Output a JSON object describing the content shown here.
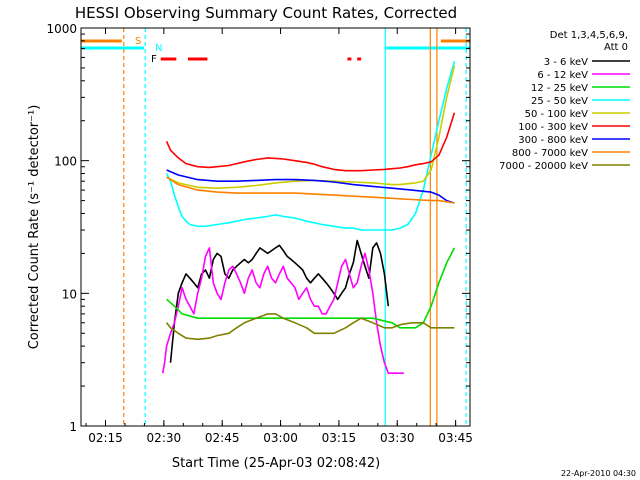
{
  "chart_data": {
    "type": "line",
    "title": "HESSI Observing Summary Count Rates, Corrected",
    "xlabel": "Start Time (25-Apr-03 02:08:42)",
    "ylabel": "Corrected Count Rate (s⁻¹ detector⁻¹)",
    "x_unit": "minutes after 02:08:42 UT",
    "xlim_min": [
      0,
      100
    ],
    "y_scale": "log",
    "ylim": [
      1,
      1000
    ],
    "x_ticks": [
      {
        "t": 6.3,
        "label": "02:15"
      },
      {
        "t": 21.3,
        "label": "02:30"
      },
      {
        "t": 36.3,
        "label": "02:45"
      },
      {
        "t": 51.3,
        "label": "03:00"
      },
      {
        "t": 66.3,
        "label": "03:15"
      },
      {
        "t": 81.3,
        "label": "03:30"
      },
      {
        "t": 96.3,
        "label": "03:45"
      }
    ],
    "y_ticks": [
      {
        "v": 1,
        "label": "1"
      },
      {
        "v": 10,
        "label": "10"
      },
      {
        "v": 100,
        "label": "100"
      },
      {
        "v": 1000,
        "label": "1000"
      }
    ],
    "legend": {
      "placement": "right",
      "header": [
        "Det 1,3,4,5,6,9,",
        "Att 0"
      ],
      "entries": [
        {
          "label": "3 - 6 keV",
          "color": "#000000"
        },
        {
          "label": "6 - 12 keV",
          "color": "#ff00ff"
        },
        {
          "label": "12 - 25 keV",
          "color": "#00dd00"
        },
        {
          "label": "25 - 50 keV",
          "color": "#00ffff"
        },
        {
          "label": "50 - 100 keV",
          "color": "#cccc00"
        },
        {
          "label": "100 - 300 keV",
          "color": "#ff0000"
        },
        {
          "label": "300 - 800 keV",
          "color": "#0000ff"
        },
        {
          "label": "800 - 7000 keV",
          "color": "#ff8000"
        },
        {
          "label": "7000 - 20000 keV",
          "color": "#808000"
        }
      ]
    },
    "series": [
      {
        "name": "3 - 6 keV",
        "color": "#000000",
        "x": [
          23,
          24,
          25,
          26,
          27,
          28,
          29,
          30,
          31,
          32,
          33,
          34,
          35,
          36,
          37,
          38,
          39,
          40,
          41,
          42,
          43,
          44,
          45,
          46,
          47,
          48,
          49,
          50,
          51,
          52,
          53,
          54,
          55,
          56,
          57,
          58,
          59,
          60,
          61,
          62,
          63,
          64,
          65,
          66,
          67,
          68,
          69,
          70,
          71,
          72,
          73,
          74,
          75,
          76,
          77,
          78,
          79
        ],
        "y": [
          3,
          6,
          10,
          12,
          14,
          13,
          12,
          11,
          14,
          15,
          13,
          18,
          20,
          19,
          14,
          13,
          15,
          16,
          17,
          18,
          17,
          18,
          20,
          22,
          21,
          20,
          21,
          22,
          23,
          21,
          19,
          18,
          17,
          16,
          15,
          13,
          12,
          13,
          14,
          13,
          12,
          11,
          10,
          9,
          10,
          11,
          14,
          17,
          25,
          20,
          16,
          13,
          22,
          24,
          20,
          14,
          8
        ]
      },
      {
        "name": "6 - 12 keV",
        "color": "#ff00ff",
        "x": [
          21,
          21.5,
          22,
          23,
          24,
          25,
          26,
          27,
          28,
          29,
          30,
          31,
          32,
          33,
          34,
          35,
          36,
          37,
          38,
          39,
          40,
          41,
          42,
          43,
          44,
          45,
          46,
          47,
          48,
          49,
          50,
          51,
          52,
          53,
          54,
          55,
          56,
          57,
          58,
          59,
          60,
          61,
          62,
          63,
          64,
          65,
          66,
          67,
          68,
          69,
          70,
          71,
          72,
          73,
          74,
          75,
          76,
          77,
          78,
          79,
          80,
          81,
          82,
          83
        ],
        "y": [
          2.5,
          3,
          4,
          5,
          6,
          8,
          11,
          9,
          8,
          7,
          10,
          13,
          19,
          22,
          12,
          10,
          9,
          12,
          15,
          16,
          14,
          12,
          10,
          13,
          15,
          12,
          11,
          14,
          16,
          13,
          12,
          14,
          16,
          13,
          12,
          11,
          9,
          10,
          11,
          9,
          8,
          8,
          7,
          7,
          8,
          9,
          12,
          16,
          18,
          14,
          11,
          12,
          16,
          20,
          15,
          10,
          6,
          4,
          3,
          2.5,
          2.5,
          2.5,
          2.5,
          2.5
        ]
      },
      {
        "name": "12 - 25 keV",
        "color": "#00dd00",
        "x": [
          22,
          23,
          24,
          25,
          26,
          30,
          35,
          40,
          45,
          50,
          55,
          60,
          65,
          70,
          75,
          80,
          82,
          84,
          86,
          88,
          90,
          92,
          94,
          96
        ],
        "y": [
          9,
          8.5,
          8,
          7.5,
          7,
          6.5,
          6.5,
          6.5,
          6.5,
          6.5,
          6.5,
          6.5,
          6.5,
          6.5,
          6.5,
          6,
          5.5,
          5.5,
          5.5,
          6,
          8,
          12,
          17,
          22
        ]
      },
      {
        "name": "25 - 50 keV",
        "color": "#00ffff",
        "x": [
          22,
          23,
          24,
          25,
          26,
          27,
          28,
          30,
          32,
          35,
          38,
          40,
          42,
          45,
          48,
          50,
          52,
          55,
          58,
          60,
          62,
          65,
          68,
          70,
          72,
          75,
          78,
          80,
          82,
          84,
          86,
          88,
          90,
          92,
          94,
          96
        ],
        "y": [
          80,
          70,
          55,
          45,
          38,
          35,
          33,
          32,
          32,
          33,
          34,
          35,
          36,
          37,
          38,
          39,
          38,
          37,
          35,
          34,
          33,
          32,
          31,
          31,
          30,
          30,
          30,
          30,
          31,
          33,
          40,
          60,
          110,
          200,
          350,
          560
        ]
      },
      {
        "name": "50 - 100 keV",
        "color": "#cccc00",
        "x": [
          22,
          25,
          30,
          35,
          40,
          45,
          50,
          55,
          60,
          65,
          70,
          75,
          80,
          82,
          84,
          86,
          88,
          90,
          92,
          94,
          96
        ],
        "y": [
          75,
          68,
          63,
          62,
          63,
          65,
          68,
          70,
          71,
          70,
          69,
          68,
          66,
          66,
          67,
          68,
          70,
          85,
          150,
          300,
          520
        ]
      },
      {
        "name": "100 - 300 keV",
        "color": "#ff0000",
        "x": [
          22,
          23,
          25,
          27,
          30,
          33,
          35,
          38,
          40,
          42,
          45,
          48,
          50,
          52,
          55,
          58,
          60,
          62,
          65,
          68,
          70,
          72,
          75,
          78,
          80,
          82,
          84,
          86,
          88,
          90,
          92,
          94,
          96
        ],
        "y": [
          140,
          120,
          105,
          95,
          90,
          89,
          90,
          92,
          95,
          98,
          102,
          105,
          104,
          103,
          100,
          97,
          94,
          90,
          86,
          84,
          84,
          84,
          85,
          86,
          87,
          88,
          90,
          93,
          95,
          98,
          110,
          150,
          230
        ]
      },
      {
        "name": "300 - 800 keV",
        "color": "#0000ff",
        "x": [
          22,
          25,
          30,
          35,
          40,
          45,
          50,
          55,
          60,
          65,
          70,
          75,
          80,
          85,
          90,
          92,
          94,
          96
        ],
        "y": [
          85,
          78,
          72,
          70,
          70,
          71,
          72,
          72,
          71,
          69,
          66,
          64,
          62,
          60,
          58,
          55,
          50,
          48
        ]
      },
      {
        "name": "800 - 7000 keV",
        "color": "#ff8000",
        "x": [
          22,
          25,
          30,
          35,
          40,
          45,
          50,
          55,
          60,
          65,
          70,
          75,
          80,
          85,
          90,
          92,
          94,
          96
        ],
        "y": [
          75,
          66,
          60,
          58,
          57,
          57,
          57,
          57,
          56,
          55,
          54,
          53,
          52,
          51,
          50,
          50,
          49,
          48
        ]
      },
      {
        "name": "7000 - 20000 keV",
        "color": "#808000",
        "x": [
          22,
          23,
          25,
          27,
          30,
          33,
          35,
          38,
          40,
          42,
          45,
          48,
          50,
          52,
          55,
          58,
          60,
          62,
          65,
          68,
          70,
          72,
          75,
          78,
          80,
          82,
          85,
          88,
          90,
          92,
          94,
          96
        ],
        "y": [
          6,
          5.5,
          5,
          4.6,
          4.5,
          4.6,
          4.8,
          5,
          5.5,
          6,
          6.5,
          7,
          7,
          6.5,
          6,
          5.5,
          5,
          5,
          5,
          5.5,
          6,
          6.5,
          6,
          5.5,
          5.5,
          5.8,
          6,
          6,
          5.5,
          5.5,
          5.5,
          5.5
        ]
      }
    ],
    "flags": {
      "s_label": "S",
      "n_label": "N",
      "f_label": "F",
      "saa_color": "#ff8000",
      "night_color": "#00ffff",
      "flare_color": "#ff0000",
      "saa_intervals": [
        [
          0,
          10.5
        ],
        [
          92.5,
          100
        ]
      ],
      "night_intervals": [
        [
          0,
          16.2
        ],
        [
          78.4,
          100
        ]
      ],
      "flare_intervals": [
        [
          20.5,
          24.5
        ],
        [
          27.5,
          32.5
        ],
        [
          68.5,
          69.5
        ],
        [
          71,
          72
        ]
      ],
      "vlines": [
        {
          "t": 11.0,
          "color": "#ff8000",
          "dashed": true
        },
        {
          "t": 16.5,
          "color": "#00ffff",
          "dashed": true
        },
        {
          "t": 78.2,
          "color": "#00ffff",
          "dashed": false
        },
        {
          "t": 89.8,
          "color": "#ff8000",
          "dashed": false
        },
        {
          "t": 91.5,
          "color": "#ff8000",
          "dashed": false
        },
        {
          "t": 99.0,
          "color": "#00ffff",
          "dashed": true
        }
      ]
    },
    "timestamp": "22-Apr-2010 04:30"
  }
}
